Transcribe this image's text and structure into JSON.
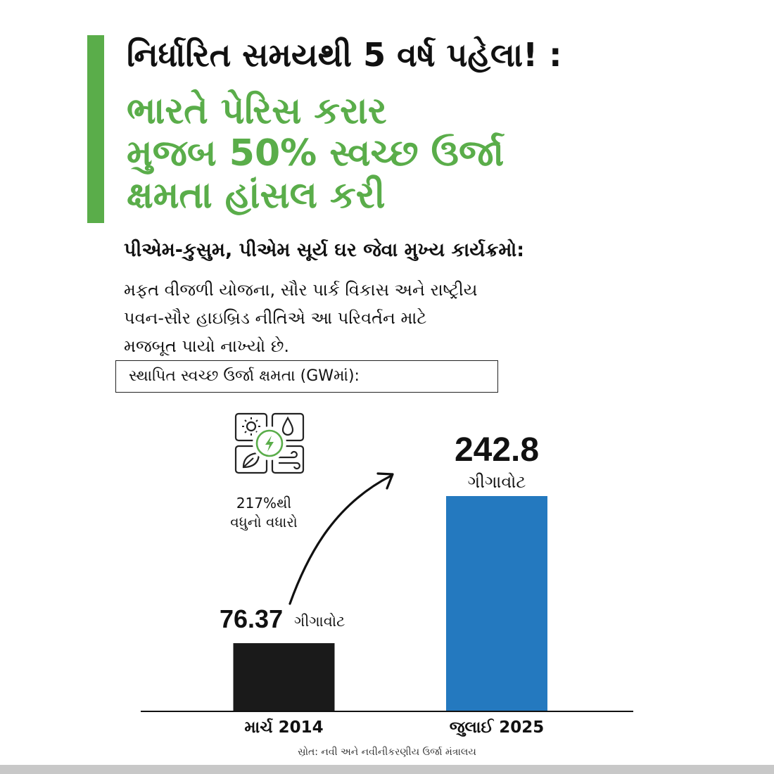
{
  "headline": {
    "line1": "નિર્ધારિત સમયથી 5 વર્ષ પહેલા! :",
    "line2": "ભારતે પેરિસ કરાર",
    "line3": "મુજબ 50% સ્વચ્છ ઉર્જા",
    "line4": "ક્ષમતા હાંસલ કરી"
  },
  "sub_heading": "પીએમ-કુસુમ, પીએમ સૂર્ય ઘર જેવા મુખ્ય કાર્યક્રમો:",
  "body": {
    "line1": "મફત વીજળી યોજના, સૌર પાર્ક વિકાસ અને રાષ્ટ્રીય",
    "line2": "પવન-સૌર હાઇબ્રિડ નીતિએ આ પરિવર્તન માટે",
    "line3": "મજબૂત પાયો નાખ્યો છે."
  },
  "chart_label": "સ્થાપિત સ્વચ્છ ઉર્જા ક્ષમતા (GWમાં):",
  "annotation": {
    "line1": "217%થી",
    "line2": "વધુનો વધારો"
  },
  "icon": "renewable-energy-grid-icon",
  "source": "સ્રોત: નવી અને નવીનીકરણીય ઉર્જા મંત્રાલય",
  "colors": {
    "accent_green": "#5aad4a",
    "bar_2014": "#1a1a1a",
    "bar_2025": "#2479bf"
  },
  "chart_data": {
    "type": "bar",
    "title": "સ્થાપિત સ્વચ્છ ઉર્જા ક્ષમતા (GWમાં):",
    "categories": [
      "માર્ચ 2014",
      "જુલાઈ 2025"
    ],
    "values": [
      76.37,
      242.8
    ],
    "value_labels": [
      "76.37",
      "242.8"
    ],
    "unit_label": "ગીગાવોટ",
    "bar_colors": [
      "#1a1a1a",
      "#2479bf"
    ],
    "ylim": [
      0,
      242.8
    ],
    "grid": false,
    "legend": "none"
  }
}
